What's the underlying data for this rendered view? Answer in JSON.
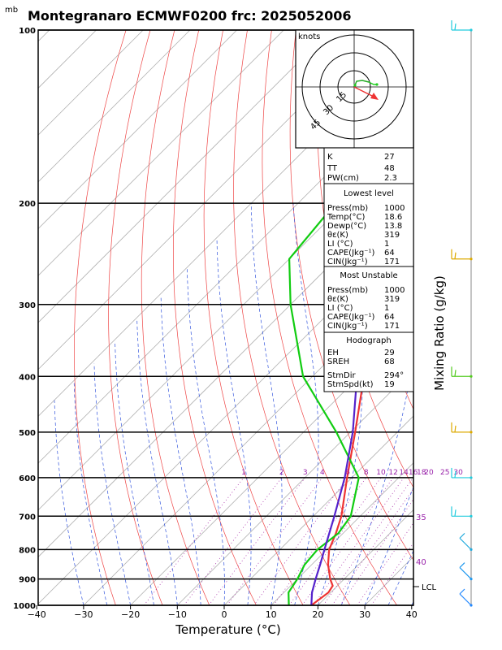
{
  "header": {
    "units_top": "mb",
    "title": "Montegranaro ECMWF0200 frc: 2025052006"
  },
  "chart_data": {
    "type": "skew-t",
    "xlabel": "Temperature (°C)",
    "ylabel_right": "Mixing Ratio (g/kg)",
    "x_ticks": [
      -40,
      -30,
      -20,
      -10,
      0,
      10,
      20,
      30,
      40
    ],
    "x_tick_labels": [
      "−40",
      "−30",
      "−20",
      "−10",
      "0",
      "10",
      "20",
      "30",
      "40"
    ],
    "xlim": [
      -40,
      40
    ],
    "pressure_levels": [
      100,
      200,
      300,
      400,
      500,
      600,
      700,
      800,
      900,
      1000
    ],
    "pressure_labels": [
      "100",
      "200",
      "300",
      "400",
      "500",
      "600",
      "700",
      "800",
      "900",
      "1000"
    ],
    "ylim": [
      100,
      1000
    ],
    "y_scale": "log",
    "series": [
      {
        "name": "temperature",
        "color": "#ee3333",
        "points": [
          [
            1000,
            18.6
          ],
          [
            950,
            19.5
          ],
          [
            925,
            19.0
          ],
          [
            900,
            17.0
          ],
          [
            850,
            13.5
          ],
          [
            800,
            10.5
          ],
          [
            750,
            8.5
          ],
          [
            700,
            6.0
          ],
          [
            600,
            -1.0
          ],
          [
            500,
            -9.0
          ],
          [
            400,
            -19.0
          ],
          [
            300,
            -32.0
          ],
          [
            250,
            -41.0
          ],
          [
            200,
            -43.5
          ],
          [
            150,
            -46.0
          ],
          [
            100,
            -52.0
          ]
        ]
      },
      {
        "name": "dewpoint",
        "color": "#11cc11",
        "points": [
          [
            1000,
            13.8
          ],
          [
            950,
            11.0
          ],
          [
            925,
            10.5
          ],
          [
            900,
            10.0
          ],
          [
            850,
            8.5
          ],
          [
            800,
            8.0
          ],
          [
            750,
            9.0
          ],
          [
            700,
            8.0
          ],
          [
            600,
            1.5
          ],
          [
            500,
            -13.0
          ],
          [
            400,
            -32.0
          ],
          [
            300,
            -50.0
          ],
          [
            250,
            -60.0
          ],
          [
            200,
            -62.0
          ],
          [
            150,
            -65.0
          ],
          [
            100,
            -69.0
          ]
        ]
      },
      {
        "name": "parcel",
        "color": "#5522cc",
        "points": [
          [
            1000,
            18.6
          ],
          [
            950,
            16.0
          ],
          [
            900,
            13.9
          ],
          [
            850,
            11.8
          ],
          [
            800,
            9.5
          ],
          [
            700,
            4.5
          ],
          [
            600,
            -1.5
          ],
          [
            500,
            -9.5
          ],
          [
            400,
            -20.5
          ],
          [
            300,
            -34.5
          ],
          [
            250,
            -44.0
          ],
          [
            200,
            -54.0
          ],
          [
            150,
            -64.0
          ],
          [
            100,
            -76.0
          ]
        ]
      }
    ],
    "mixing_ratio_labels": [
      "1",
      "2",
      "3",
      "4",
      "6",
      "8",
      "10",
      "12",
      "14",
      "16",
      "18",
      "20",
      "25",
      "30"
    ],
    "mixing_ratio_values": [
      1,
      2,
      3,
      4,
      6,
      8,
      10,
      12,
      14,
      16,
      18,
      20,
      25,
      30
    ],
    "theta_e_labels": [
      "35",
      "40"
    ],
    "lcl_label": "LCL",
    "lcl_pressure": 945,
    "hodograph": {
      "units": "knots",
      "ring_labels": [
        "15",
        "30",
        "45"
      ]
    },
    "wind_barbs": [
      {
        "pressure": 100,
        "color": "#22ccdd"
      },
      {
        "pressure": 250,
        "color": "#ddaa00"
      },
      {
        "pressure": 400,
        "color": "#55cc22"
      },
      {
        "pressure": 500,
        "color": "#ddaa00"
      },
      {
        "pressure": 600,
        "color": "#22ccdd"
      },
      {
        "pressure": 700,
        "color": "#22ccdd"
      },
      {
        "pressure": 800,
        "color": "#22aadd"
      },
      {
        "pressure": 900,
        "color": "#2299ee"
      },
      {
        "pressure": 1000,
        "color": "#2288ff"
      }
    ]
  },
  "indices": {
    "general": [
      {
        "label": "K",
        "value": "27"
      },
      {
        "label": "TT",
        "value": "48"
      },
      {
        "label": "PW(cm)",
        "value": "2.3"
      }
    ],
    "lowest_title": "Lowest level",
    "lowest": [
      {
        "label": "Press(mb)",
        "value": "1000"
      },
      {
        "label": "Temp(°C)",
        "value": "18.6"
      },
      {
        "label": "Dewp(°C)",
        "value": "13.8"
      },
      {
        "label": "θε(K)",
        "value": "319"
      },
      {
        "label": "LI (°C)",
        "value": "1"
      },
      {
        "label": "CAPE(Jkg⁻¹)",
        "value": "64"
      },
      {
        "label": "CIN(Jkg⁻¹)",
        "value": "171"
      }
    ],
    "unstable_title": "Most Unstable",
    "unstable": [
      {
        "label": "Press(mb)",
        "value": "1000"
      },
      {
        "label": "θε(K)",
        "value": "319"
      },
      {
        "label": "LI (°C)",
        "value": "1"
      },
      {
        "label": "CAPE(Jkg⁻¹)",
        "value": "64"
      },
      {
        "label": "CIN(Jkg⁻¹)",
        "value": "171"
      }
    ],
    "hodo_title": "Hodograph",
    "hodo": [
      {
        "label": "EH",
        "value": "29"
      },
      {
        "label": "SREH",
        "value": "68"
      },
      {
        "label": "StmDir",
        "value": "294°"
      },
      {
        "label": "StmSpd(kt)",
        "value": "19"
      }
    ]
  }
}
